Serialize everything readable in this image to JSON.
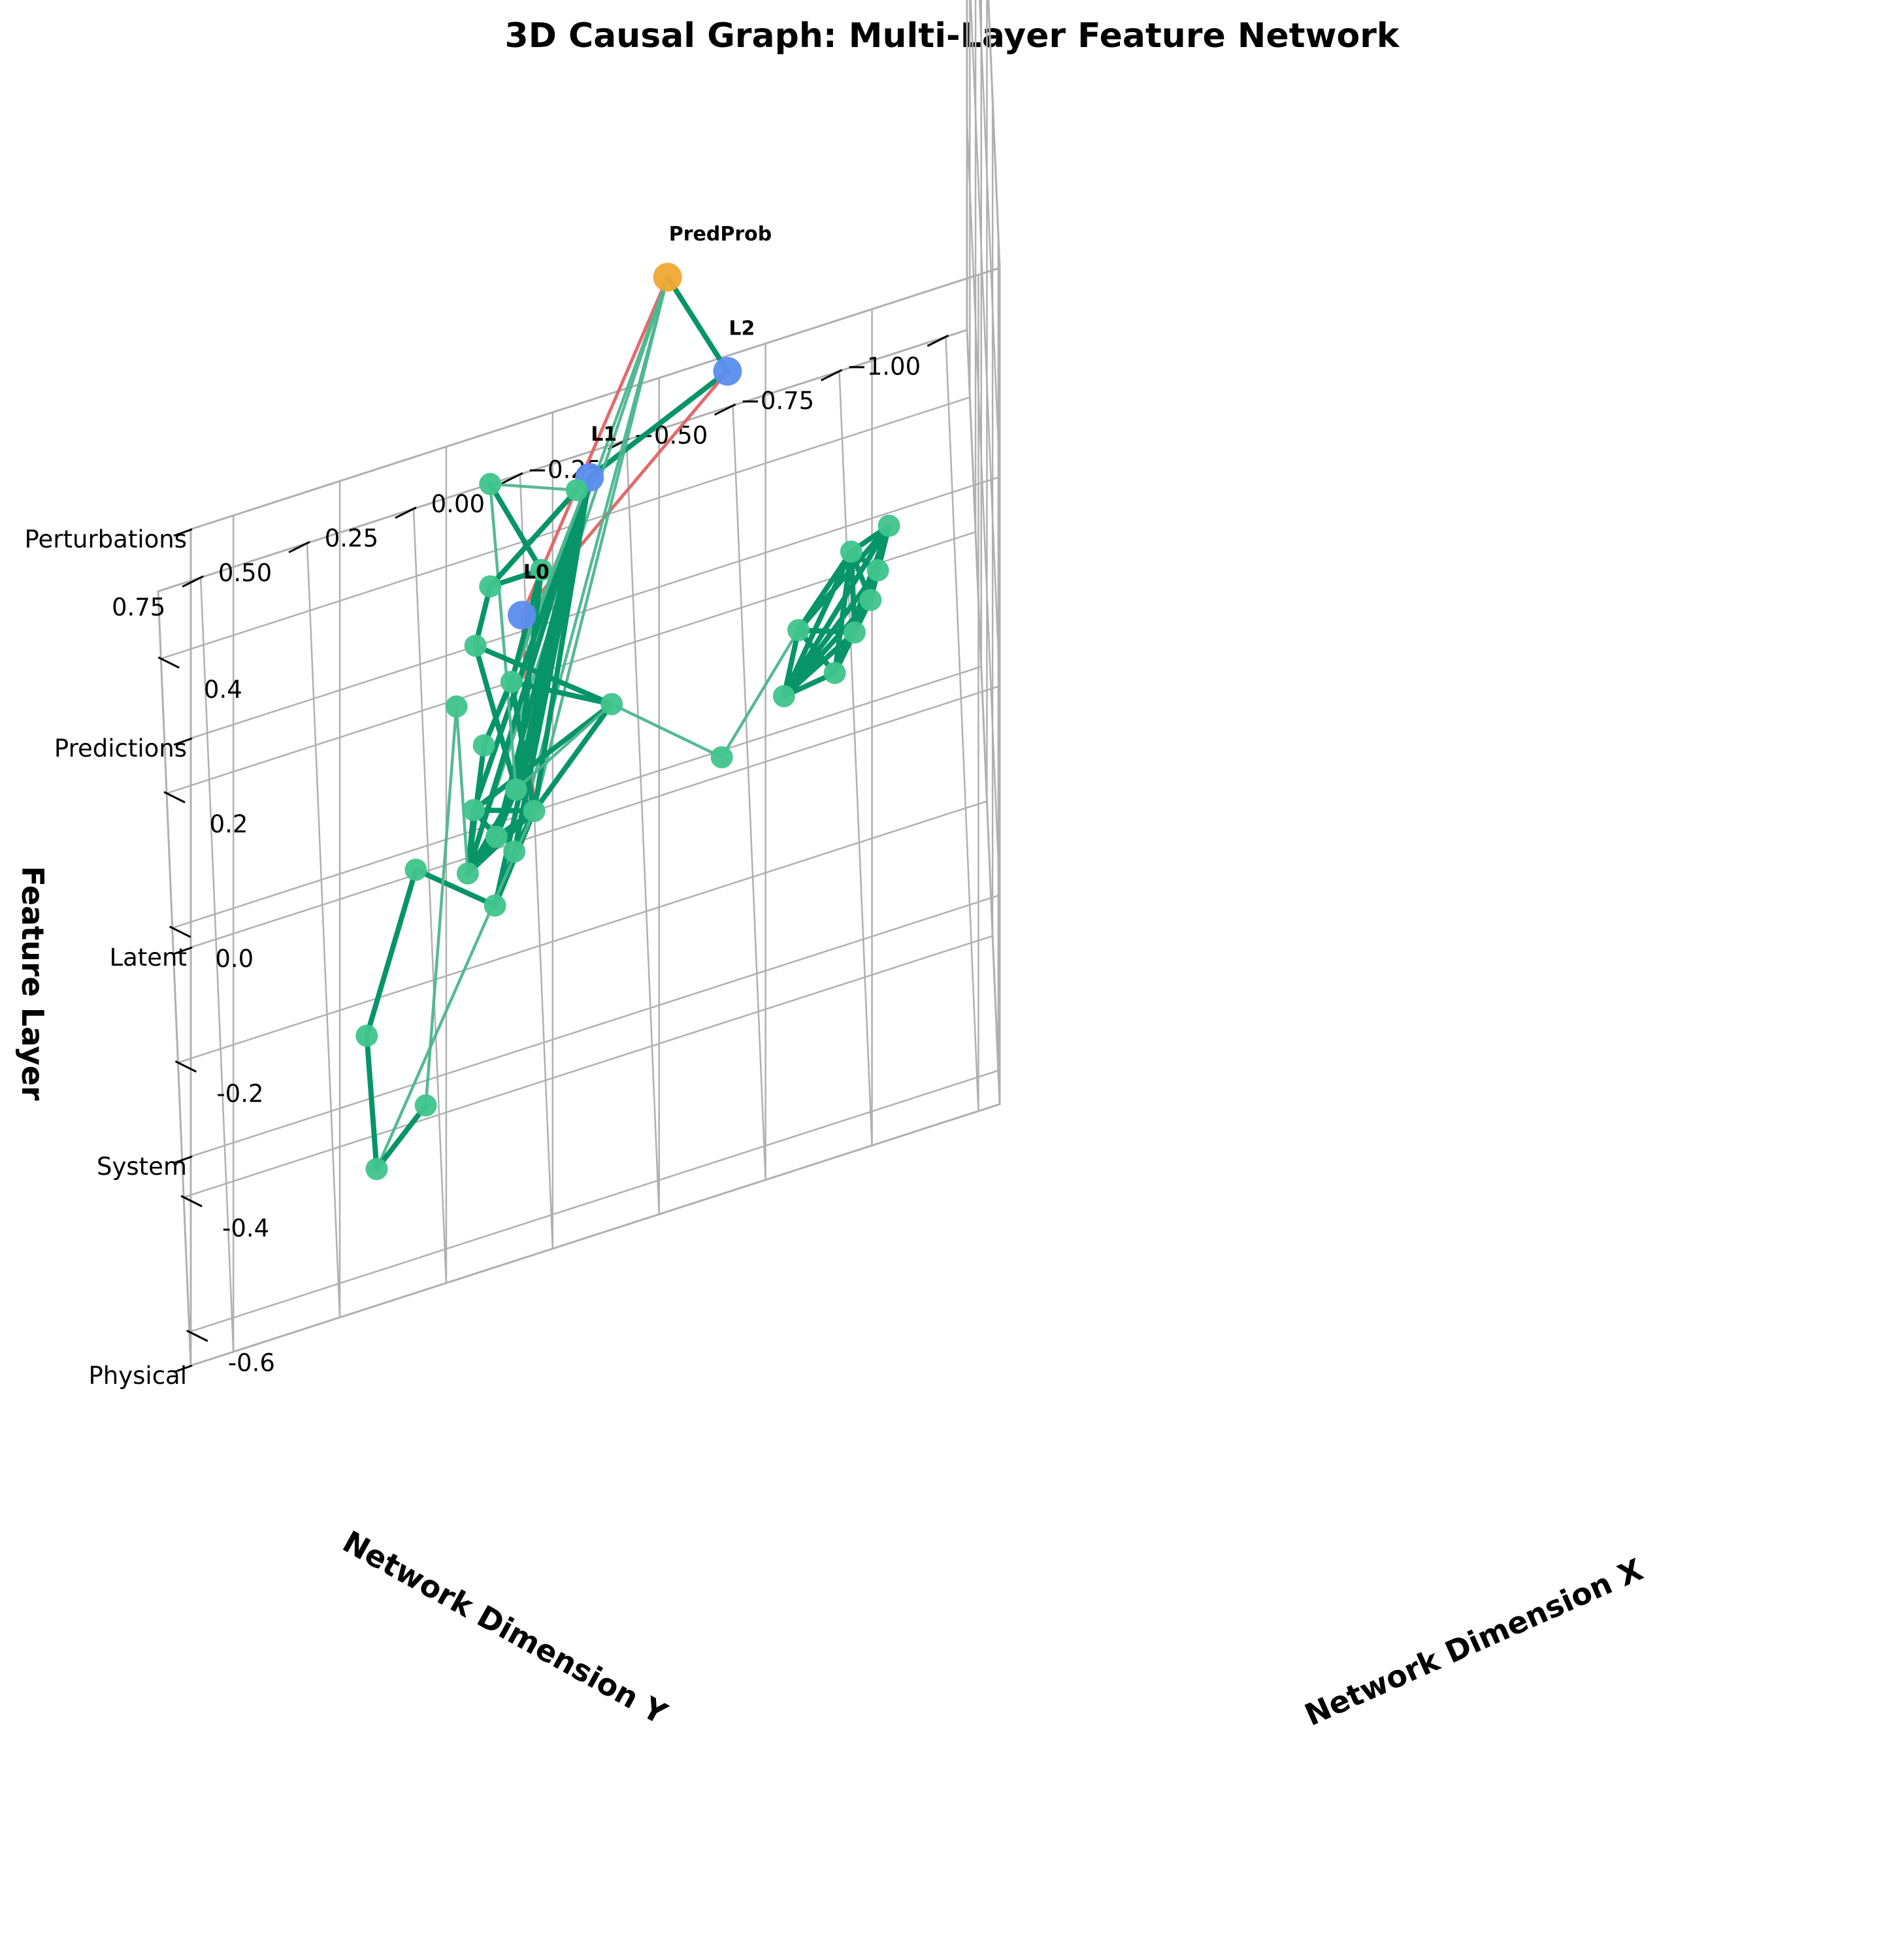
{
  "chart_data": {
    "type": "3d-network",
    "title": "3D Causal Graph: Multi-Layer Feature Network",
    "xlabel": "Network Dimension X",
    "ylabel": "Network Dimension Y",
    "zlabel": "Feature Layer",
    "xlim": [
      -0.65,
      0.5
    ],
    "ylim": [
      -1.05,
      0.85
    ],
    "zlim": [
      0,
      4
    ],
    "x_ticks": [
      "-0.6",
      "-0.4",
      "-0.2",
      "0.0",
      "0.2",
      "0.4"
    ],
    "x_tick_values": [
      -0.6,
      -0.4,
      -0.2,
      0.0,
      0.2,
      0.4
    ],
    "y_ticks": [
      "−1.00",
      "−0.75",
      "−0.50",
      "−0.25",
      "0.00",
      "0.25",
      "0.50",
      "0.75"
    ],
    "y_tick_values": [
      -1.0,
      -0.75,
      -0.5,
      -0.25,
      0.0,
      0.25,
      0.5,
      0.75
    ],
    "z_ticks": [
      "Physical",
      "System",
      "Latent",
      "Predictions",
      "Perturbations"
    ],
    "z_tick_values": [
      0,
      1,
      2,
      3,
      4
    ],
    "grid": true,
    "colors": {
      "physical_node": "#3fc48c",
      "latent_node": "#5b8def",
      "prediction_node": "#f0a830",
      "edge_strong": "#069468",
      "edge_weak": "#4cb58e",
      "edge_negative": "#e06363",
      "grid": "#b0b0b0"
    },
    "nodes": [
      {
        "id": "L0",
        "label": "L0",
        "x": -0.32,
        "y": 0.05,
        "z": 2.0,
        "group": "latent"
      },
      {
        "id": "L1",
        "label": "L1",
        "x": -0.15,
        "y": -0.12,
        "z": 2.0,
        "group": "latent"
      },
      {
        "id": "L2",
        "label": "L2",
        "x": -0.06,
        "y": -0.45,
        "z": 2.0,
        "group": "latent"
      },
      {
        "id": "PredProb",
        "label": "PredProb",
        "x": -0.2,
        "y": -0.3,
        "z": 3.0,
        "group": "prediction"
      },
      {
        "id": "a1",
        "label": "",
        "x": 0.05,
        "y": -0.59,
        "z": 0,
        "group": "physical"
      },
      {
        "id": "a2",
        "label": "",
        "x": 0.19,
        "y": -0.82,
        "z": 0,
        "group": "physical"
      },
      {
        "id": "a3",
        "label": "",
        "x": 0.15,
        "y": -0.8,
        "z": 0,
        "group": "physical"
      },
      {
        "id": "a4",
        "label": "",
        "x": 0.06,
        "y": -0.71,
        "z": 0,
        "group": "physical"
      },
      {
        "id": "a5",
        "label": "",
        "x": 0.11,
        "y": -0.76,
        "z": 0,
        "group": "physical"
      },
      {
        "id": "a6",
        "label": "",
        "x": 0.14,
        "y": -0.63,
        "z": 0,
        "group": "physical"
      },
      {
        "id": "a7",
        "label": "",
        "x": 0.25,
        "y": -0.85,
        "z": 0,
        "group": "physical"
      },
      {
        "id": "a8",
        "label": "",
        "x": 0.23,
        "y": -0.76,
        "z": 0,
        "group": "physical"
      },
      {
        "id": "a9",
        "label": "",
        "x": -0.01,
        "y": -0.44,
        "z": 0,
        "group": "physical"
      },
      {
        "id": "c0",
        "label": "",
        "x": 0.0,
        "y": 0.0,
        "z": 0,
        "group": "physical"
      },
      {
        "id": "c1",
        "label": "",
        "x": -0.02,
        "y": 0.09,
        "z": 0,
        "group": "physical"
      },
      {
        "id": "c2",
        "label": "",
        "x": -0.05,
        "y": 0.05,
        "z": 0,
        "group": "physical"
      },
      {
        "id": "c3",
        "label": "",
        "x": 0.03,
        "y": 0.14,
        "z": 0,
        "group": "physical"
      },
      {
        "id": "c4",
        "label": "",
        "x": -0.06,
        "y": 0.16,
        "z": 0,
        "group": "physical"
      },
      {
        "id": "c5",
        "label": "",
        "x": -0.12,
        "y": 0.1,
        "z": 0,
        "group": "physical"
      },
      {
        "id": "c6",
        "label": "",
        "x": 0.04,
        "y": 0.04,
        "z": 0,
        "group": "physical"
      },
      {
        "id": "p1",
        "label": "",
        "x": -0.38,
        "y": 0.28,
        "z": 0,
        "group": "physical"
      },
      {
        "id": "p2",
        "label": "",
        "x": -0.45,
        "y": 0.4,
        "z": 0,
        "group": "physical"
      },
      {
        "id": "p3",
        "label": "",
        "x": -0.25,
        "y": 0.41,
        "z": 0,
        "group": "physical"
      },
      {
        "id": "p4",
        "label": "",
        "x": -0.03,
        "y": 0.28,
        "z": 0,
        "group": "physical"
      },
      {
        "id": "m1",
        "label": "",
        "x": 0.12,
        "y": -0.19,
        "z": 0,
        "group": "physical"
      },
      {
        "id": "m2",
        "label": "",
        "x": 0.2,
        "y": 0.04,
        "z": 0,
        "group": "physical"
      },
      {
        "id": "m3",
        "label": "",
        "x": 0.12,
        "y": 0.11,
        "z": 0,
        "group": "physical"
      },
      {
        "id": "m4",
        "label": "",
        "x": 0.35,
        "y": -0.04,
        "z": 0,
        "group": "physical"
      },
      {
        "id": "m5",
        "label": "",
        "x": 0.27,
        "y": 0.12,
        "z": 0,
        "group": "physical"
      },
      {
        "id": "m6",
        "label": "",
        "x": 0.35,
        "y": 0.08,
        "z": 0,
        "group": "physical"
      },
      {
        "id": "m7",
        "label": "",
        "x": 0.45,
        "y": -0.13,
        "z": 0,
        "group": "physical"
      },
      {
        "id": "m8",
        "label": "",
        "x": 0.5,
        "y": 0.07,
        "z": 0,
        "group": "physical"
      },
      {
        "id": "m9",
        "label": "",
        "x": 0.19,
        "y": 0.17,
        "z": 0,
        "group": "physical"
      }
    ],
    "edges": [
      {
        "source": "PredProb",
        "target": "L2",
        "kind": "strong"
      },
      {
        "source": "PredProb",
        "target": "L0",
        "kind": "negative"
      },
      {
        "source": "L1",
        "target": "L2",
        "kind": "strong"
      },
      {
        "source": "L2",
        "target": "L0",
        "kind": "negative"
      },
      {
        "source": "L0",
        "target": "c0",
        "kind": "negative"
      },
      {
        "source": "PredProb",
        "target": "c0",
        "kind": "weak"
      },
      {
        "source": "PredProb",
        "target": "c2",
        "kind": "weak"
      },
      {
        "source": "PredProb",
        "target": "c3",
        "kind": "weak"
      },
      {
        "source": "PredProb",
        "target": "c4",
        "kind": "weak"
      },
      {
        "source": "L1",
        "target": "c0",
        "kind": "strong"
      },
      {
        "source": "L1",
        "target": "c1",
        "kind": "strong"
      },
      {
        "source": "L1",
        "target": "c2",
        "kind": "strong"
      },
      {
        "source": "L1",
        "target": "c3",
        "kind": "strong"
      },
      {
        "source": "L1",
        "target": "c4",
        "kind": "strong"
      },
      {
        "source": "L1",
        "target": "c5",
        "kind": "strong"
      },
      {
        "source": "L1",
        "target": "c6",
        "kind": "strong"
      },
      {
        "source": "L1",
        "target": "m2",
        "kind": "weak"
      },
      {
        "source": "L1",
        "target": "m3",
        "kind": "weak"
      },
      {
        "source": "c0",
        "target": "c1",
        "kind": "strong"
      },
      {
        "source": "c0",
        "target": "c2",
        "kind": "strong"
      },
      {
        "source": "c0",
        "target": "c3",
        "kind": "strong"
      },
      {
        "source": "c0",
        "target": "c4",
        "kind": "strong"
      },
      {
        "source": "c0",
        "target": "c5",
        "kind": "strong"
      },
      {
        "source": "c0",
        "target": "c6",
        "kind": "strong"
      },
      {
        "source": "c1",
        "target": "c3",
        "kind": "strong"
      },
      {
        "source": "c1",
        "target": "c4",
        "kind": "strong"
      },
      {
        "source": "c2",
        "target": "c5",
        "kind": "strong"
      },
      {
        "source": "c3",
        "target": "c4",
        "kind": "strong"
      },
      {
        "source": "c4",
        "target": "c6",
        "kind": "strong"
      },
      {
        "source": "c1",
        "target": "c6",
        "kind": "strong"
      },
      {
        "source": "c0",
        "target": "m1",
        "kind": "strong"
      },
      {
        "source": "c3",
        "target": "m1",
        "kind": "strong"
      },
      {
        "source": "c0",
        "target": "m2",
        "kind": "strong"
      },
      {
        "source": "c4",
        "target": "m3",
        "kind": "strong"
      },
      {
        "source": "c6",
        "target": "m5",
        "kind": "strong"
      },
      {
        "source": "c6",
        "target": "m4",
        "kind": "strong"
      },
      {
        "source": "c5",
        "target": "p4",
        "kind": "strong"
      },
      {
        "source": "c4",
        "target": "m9",
        "kind": "weak"
      },
      {
        "source": "m9",
        "target": "p1",
        "kind": "weak"
      },
      {
        "source": "c6",
        "target": "m8",
        "kind": "weak"
      },
      {
        "source": "c0",
        "target": "p2",
        "kind": "weak"
      },
      {
        "source": "m1",
        "target": "m2",
        "kind": "strong"
      },
      {
        "source": "m2",
        "target": "m3",
        "kind": "strong"
      },
      {
        "source": "m2",
        "target": "m4",
        "kind": "strong"
      },
      {
        "source": "m4",
        "target": "m6",
        "kind": "strong"
      },
      {
        "source": "m5",
        "target": "m6",
        "kind": "strong"
      },
      {
        "source": "m1",
        "target": "m5",
        "kind": "strong"
      },
      {
        "source": "m7",
        "target": "m6",
        "kind": "strong"
      },
      {
        "source": "m7",
        "target": "m8",
        "kind": "weak"
      },
      {
        "source": "m4",
        "target": "m8",
        "kind": "strong"
      },
      {
        "source": "p1",
        "target": "p2",
        "kind": "strong"
      },
      {
        "source": "p2",
        "target": "p3",
        "kind": "strong"
      },
      {
        "source": "p3",
        "target": "p4",
        "kind": "strong"
      },
      {
        "source": "a1",
        "target": "a2",
        "kind": "strong"
      },
      {
        "source": "a1",
        "target": "a3",
        "kind": "strong"
      },
      {
        "source": "a1",
        "target": "a4",
        "kind": "strong"
      },
      {
        "source": "a1",
        "target": "a5",
        "kind": "strong"
      },
      {
        "source": "a1",
        "target": "a6",
        "kind": "strong"
      },
      {
        "source": "a1",
        "target": "a7",
        "kind": "strong"
      },
      {
        "source": "a1",
        "target": "a8",
        "kind": "strong"
      },
      {
        "source": "a2",
        "target": "a3",
        "kind": "strong"
      },
      {
        "source": "a2",
        "target": "a4",
        "kind": "strong"
      },
      {
        "source": "a2",
        "target": "a5",
        "kind": "strong"
      },
      {
        "source": "a2",
        "target": "a7",
        "kind": "strong"
      },
      {
        "source": "a2",
        "target": "a8",
        "kind": "strong"
      },
      {
        "source": "a3",
        "target": "a5",
        "kind": "strong"
      },
      {
        "source": "a3",
        "target": "a7",
        "kind": "strong"
      },
      {
        "source": "a3",
        "target": "a8",
        "kind": "strong"
      },
      {
        "source": "a4",
        "target": "a5",
        "kind": "strong"
      },
      {
        "source": "a4",
        "target": "a6",
        "kind": "strong"
      },
      {
        "source": "a4",
        "target": "a7",
        "kind": "strong"
      },
      {
        "source": "a5",
        "target": "a6",
        "kind": "strong"
      },
      {
        "source": "a5",
        "target": "a7",
        "kind": "strong"
      },
      {
        "source": "a5",
        "target": "a8",
        "kind": "strong"
      },
      {
        "source": "a6",
        "target": "a7",
        "kind": "strong"
      },
      {
        "source": "a6",
        "target": "a8",
        "kind": "strong"
      },
      {
        "source": "a7",
        "target": "a8",
        "kind": "strong"
      },
      {
        "source": "a4",
        "target": "a8",
        "kind": "strong"
      },
      {
        "source": "a6",
        "target": "a9",
        "kind": "weak"
      },
      {
        "source": "a9",
        "target": "m1",
        "kind": "weak"
      },
      {
        "source": "m1",
        "target": "c6",
        "kind": "weak"
      }
    ]
  }
}
